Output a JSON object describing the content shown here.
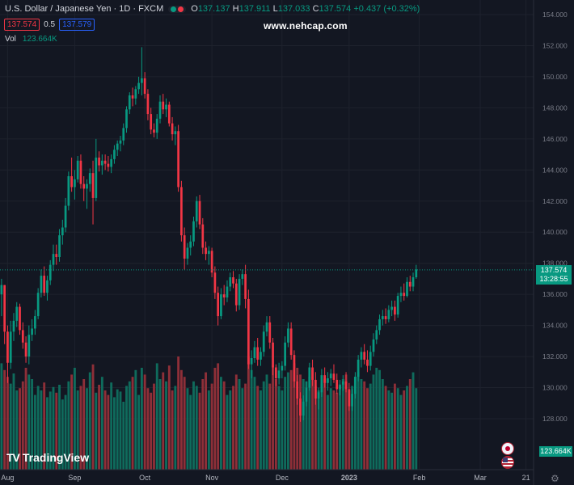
{
  "header": {
    "symbol": "U.S. Dollar / Japanese Yen · 1D · FXCM",
    "open_label": "O",
    "open": "137.137",
    "high_label": "H",
    "high": "137.911",
    "low_label": "L",
    "low": "137.033",
    "close_label": "C",
    "close": "137.574",
    "change": "+0.437 (+0.32%)",
    "status_icons": [
      "market-closed-icon",
      "data-live-icon"
    ]
  },
  "quote": {
    "bid": "137.574",
    "spread": "0.5",
    "ask": "137.579"
  },
  "volume": {
    "label": "Vol",
    "value": "123.664K"
  },
  "watermark": "www.nehcap.com",
  "logo": {
    "text": "TradingView",
    "mark": "TV"
  },
  "last_price": {
    "price": "137.574",
    "countdown": "13:28:55"
  },
  "volume_badge": "123.664K",
  "colors": {
    "up": "#089981",
    "down": "#f23645",
    "background": "#131722",
    "grid": "#1e222d",
    "text": "#d1d4dc"
  },
  "chart_data": {
    "type": "candlestick",
    "ylim": [
      126.5,
      154.5
    ],
    "y_ticks": [
      "154.000",
      "152.000",
      "150.000",
      "148.000",
      "146.000",
      "144.000",
      "142.000",
      "140.000",
      "138.000",
      "136.000",
      "134.000",
      "132.000",
      "130.000",
      "128.000"
    ],
    "y_tick_values": [
      154,
      152,
      150,
      148,
      146,
      144,
      142,
      140,
      138,
      136,
      134,
      132,
      130,
      128
    ],
    "x_ticks": [
      "Aug",
      "Sep",
      "Oct",
      "Nov",
      "Dec",
      "2023",
      "Feb",
      "Mar",
      "21"
    ],
    "x_tick_index": [
      2,
      24,
      47,
      69,
      92,
      114,
      137,
      157,
      172
    ],
    "total_slots": 175,
    "last_price": 137.574,
    "candles": [
      [
        136.0,
        137.0,
        134.6,
        136.6
      ],
      [
        136.6,
        136.6,
        132.8,
        133.6
      ],
      [
        133.6,
        134.0,
        130.3,
        131.6
      ],
      [
        131.6,
        134.3,
        131.2,
        133.6
      ],
      [
        133.6,
        134.8,
        133.0,
        134.3
      ],
      [
        134.3,
        135.5,
        133.9,
        135.2
      ],
      [
        135.2,
        135.4,
        133.4,
        133.7
      ],
      [
        133.7,
        134.2,
        132.5,
        132.9
      ],
      [
        132.9,
        133.3,
        131.6,
        132.0
      ],
      [
        132.0,
        134.0,
        131.5,
        133.4
      ],
      [
        133.4,
        134.4,
        133.0,
        133.8
      ],
      [
        133.8,
        135.0,
        133.4,
        134.6
      ],
      [
        134.6,
        136.4,
        134.4,
        136.1
      ],
      [
        136.1,
        137.6,
        135.8,
        137.2
      ],
      [
        137.2,
        137.8,
        135.9,
        136.1
      ],
      [
        136.1,
        137.2,
        135.6,
        136.9
      ],
      [
        136.9,
        138.2,
        136.6,
        137.9
      ],
      [
        137.9,
        139.2,
        137.5,
        138.6
      ],
      [
        138.6,
        139.2,
        137.9,
        138.4
      ],
      [
        138.4,
        140.2,
        138.1,
        139.8
      ],
      [
        139.8,
        140.8,
        139.2,
        140.3
      ],
      [
        140.3,
        142.2,
        140.0,
        141.7
      ],
      [
        141.7,
        143.9,
        141.4,
        143.6
      ],
      [
        143.6,
        144.8,
        142.6,
        142.9
      ],
      [
        142.9,
        144.0,
        142.1,
        143.4
      ],
      [
        143.4,
        144.9,
        143.2,
        144.6
      ],
      [
        144.6,
        145.0,
        142.8,
        143.1
      ],
      [
        143.1,
        143.6,
        142.0,
        142.8
      ],
      [
        142.8,
        143.4,
        141.5,
        143.1
      ],
      [
        143.1,
        144.1,
        142.6,
        143.8
      ],
      [
        143.8,
        144.6,
        140.5,
        142.2
      ],
      [
        142.2,
        146.0,
        142.0,
        144.8
      ],
      [
        144.8,
        145.2,
        143.9,
        144.3
      ],
      [
        144.3,
        145.0,
        143.7,
        144.6
      ],
      [
        144.6,
        145.0,
        144.0,
        144.4
      ],
      [
        144.4,
        144.9,
        143.9,
        144.2
      ],
      [
        144.2,
        145.0,
        143.8,
        144.7
      ],
      [
        144.7,
        145.6,
        144.4,
        145.3
      ],
      [
        145.3,
        145.9,
        144.9,
        145.7
      ],
      [
        145.7,
        146.2,
        145.2,
        145.9
      ],
      [
        145.9,
        147.0,
        145.6,
        146.7
      ],
      [
        146.7,
        148.1,
        146.4,
        147.9
      ],
      [
        147.9,
        149.0,
        147.6,
        148.8
      ],
      [
        148.8,
        149.3,
        148.1,
        148.6
      ],
      [
        148.6,
        149.4,
        148.2,
        149.2
      ],
      [
        149.2,
        150.0,
        148.9,
        149.6
      ],
      [
        149.6,
        151.9,
        148.8,
        149.9
      ],
      [
        149.9,
        150.3,
        148.6,
        148.9
      ],
      [
        148.9,
        149.2,
        147.2,
        147.6
      ],
      [
        147.6,
        148.0,
        146.3,
        146.6
      ],
      [
        146.6,
        147.0,
        146.1,
        146.4
      ],
      [
        146.4,
        147.6,
        146.0,
        147.3
      ],
      [
        147.3,
        148.8,
        147.0,
        148.4
      ],
      [
        148.4,
        148.9,
        147.6,
        147.9
      ],
      [
        147.9,
        148.6,
        147.4,
        148.2
      ],
      [
        148.2,
        148.4,
        146.8,
        147.0
      ],
      [
        147.0,
        147.4,
        145.9,
        146.3
      ],
      [
        146.3,
        146.8,
        145.6,
        146.5
      ],
      [
        146.5,
        146.9,
        142.6,
        142.9
      ],
      [
        142.9,
        143.3,
        139.4,
        139.8
      ],
      [
        139.8,
        140.3,
        137.6,
        138.3
      ],
      [
        138.3,
        139.3,
        137.9,
        139.0
      ],
      [
        139.0,
        139.8,
        138.5,
        139.4
      ],
      [
        139.4,
        141.0,
        139.1,
        140.7
      ],
      [
        140.7,
        142.3,
        140.3,
        142.0
      ],
      [
        142.0,
        142.4,
        140.2,
        140.5
      ],
      [
        140.5,
        140.9,
        138.6,
        139.0
      ],
      [
        139.0,
        139.4,
        138.2,
        138.6
      ],
      [
        138.6,
        139.1,
        137.9,
        138.8
      ],
      [
        138.8,
        139.0,
        137.1,
        137.4
      ],
      [
        137.4,
        137.8,
        135.7,
        136.1
      ],
      [
        136.1,
        136.5,
        134.0,
        134.6
      ],
      [
        134.6,
        136.4,
        134.4,
        136.0
      ],
      [
        136.0,
        136.6,
        135.3,
        135.8
      ],
      [
        135.8,
        136.9,
        135.5,
        136.5
      ],
      [
        136.5,
        137.4,
        136.2,
        137.1
      ],
      [
        137.1,
        137.5,
        136.4,
        136.7
      ],
      [
        136.7,
        137.0,
        134.9,
        135.3
      ],
      [
        135.3,
        137.3,
        135.0,
        137.0
      ],
      [
        137.0,
        137.6,
        136.6,
        137.3
      ],
      [
        137.3,
        137.9,
        135.1,
        135.7
      ],
      [
        135.7,
        136.3,
        131.2,
        131.5
      ],
      [
        131.5,
        132.4,
        130.6,
        131.9
      ],
      [
        131.9,
        133.0,
        131.6,
        132.6
      ],
      [
        132.6,
        133.2,
        131.4,
        131.8
      ],
      [
        131.8,
        132.6,
        131.4,
        132.3
      ],
      [
        132.3,
        134.0,
        132.0,
        133.6
      ],
      [
        133.6,
        134.6,
        133.3,
        134.2
      ],
      [
        134.2,
        134.6,
        132.5,
        132.9
      ],
      [
        132.9,
        133.2,
        130.8,
        131.3
      ],
      [
        131.3,
        131.5,
        130.1,
        130.6
      ],
      [
        130.6,
        131.6,
        130.2,
        131.1
      ],
      [
        131.1,
        131.7,
        130.6,
        131.4
      ],
      [
        131.4,
        133.3,
        131.1,
        132.9
      ],
      [
        132.9,
        134.2,
        132.6,
        133.8
      ],
      [
        133.8,
        134.2,
        131.8,
        132.1
      ],
      [
        132.1,
        132.4,
        130.0,
        130.4
      ],
      [
        130.4,
        130.8,
        128.9,
        129.3
      ],
      [
        129.3,
        129.7,
        127.8,
        128.2
      ],
      [
        128.2,
        129.5,
        127.9,
        129.1
      ],
      [
        129.1,
        130.4,
        128.8,
        130.0
      ],
      [
        130.0,
        131.6,
        129.8,
        131.3
      ],
      [
        131.3,
        131.8,
        130.1,
        130.5
      ],
      [
        130.5,
        131.0,
        128.9,
        129.3
      ],
      [
        129.3,
        130.0,
        128.6,
        129.7
      ],
      [
        129.7,
        131.2,
        129.4,
        130.8
      ],
      [
        130.8,
        131.3,
        130.0,
        130.3
      ],
      [
        130.3,
        131.0,
        129.8,
        130.6
      ],
      [
        130.6,
        131.2,
        130.1,
        130.9
      ],
      [
        130.9,
        131.5,
        130.3,
        130.5
      ],
      [
        130.5,
        130.9,
        129.6,
        129.9
      ],
      [
        129.9,
        130.5,
        129.5,
        130.2
      ],
      [
        130.2,
        130.8,
        129.8,
        130.4
      ],
      [
        130.4,
        131.0,
        129.7,
        129.9
      ],
      [
        129.9,
        130.3,
        128.5,
        128.8
      ],
      [
        128.8,
        129.9,
        128.5,
        129.6
      ],
      [
        129.6,
        131.0,
        129.3,
        130.7
      ],
      [
        130.7,
        132.1,
        130.4,
        131.8
      ],
      [
        131.8,
        132.6,
        131.3,
        132.3
      ],
      [
        132.3,
        132.8,
        131.5,
        131.8
      ],
      [
        131.8,
        132.4,
        131.0,
        131.4
      ],
      [
        131.4,
        132.7,
        131.1,
        132.3
      ],
      [
        132.3,
        133.5,
        132.0,
        133.1
      ],
      [
        133.1,
        134.0,
        132.8,
        133.7
      ],
      [
        133.7,
        134.7,
        133.4,
        134.4
      ],
      [
        134.4,
        135.0,
        134.0,
        134.6
      ],
      [
        134.6,
        135.1,
        134.1,
        134.4
      ],
      [
        134.4,
        135.3,
        134.2,
        135.0
      ],
      [
        135.0,
        135.6,
        134.6,
        135.2
      ],
      [
        135.2,
        135.6,
        134.3,
        134.7
      ],
      [
        134.7,
        136.1,
        134.5,
        135.9
      ],
      [
        135.9,
        136.5,
        135.5,
        136.1
      ],
      [
        136.1,
        136.7,
        135.6,
        135.9
      ],
      [
        135.9,
        137.1,
        135.8,
        136.8
      ],
      [
        136.8,
        137.2,
        136.2,
        136.5
      ],
      [
        136.5,
        137.4,
        136.2,
        137.1
      ],
      [
        137.1,
        137.9,
        137.0,
        137.6
      ]
    ],
    "volumes": [
      0.94,
      0.88,
      0.82,
      0.76,
      0.85,
      0.7,
      0.72,
      0.78,
      0.9,
      0.84,
      0.8,
      0.66,
      0.74,
      0.7,
      0.77,
      0.64,
      0.69,
      0.73,
      0.68,
      0.75,
      0.62,
      0.66,
      0.78,
      0.84,
      0.9,
      0.7,
      0.74,
      0.8,
      0.72,
      0.86,
      0.93,
      0.68,
      0.75,
      0.82,
      0.7,
      0.66,
      0.77,
      0.64,
      0.71,
      0.69,
      0.6,
      0.74,
      0.78,
      0.82,
      0.88,
      0.66,
      0.9,
      0.84,
      0.72,
      0.68,
      0.76,
      0.94,
      0.8,
      0.86,
      0.78,
      0.92,
      0.7,
      0.74,
      1.0,
      0.88,
      0.82,
      0.72,
      0.66,
      0.78,
      0.74,
      0.68,
      0.8,
      0.86,
      0.7,
      0.76,
      0.9,
      0.94,
      0.82,
      0.78,
      0.66,
      0.7,
      0.74,
      0.84,
      0.8,
      0.72,
      0.76,
      1.0,
      0.88,
      0.82,
      0.74,
      0.7,
      0.78,
      0.84,
      0.76,
      0.92,
      0.8,
      0.74,
      0.7,
      0.82,
      0.86,
      0.88,
      0.94,
      0.9,
      0.84,
      0.8,
      0.78,
      0.82,
      0.88,
      0.74,
      0.7,
      0.76,
      0.8,
      0.66,
      0.72,
      0.7,
      0.68,
      0.74,
      0.8,
      0.84,
      0.7,
      0.74,
      0.82,
      0.86,
      0.8,
      0.78,
      0.72,
      0.76,
      0.84,
      0.9,
      0.88,
      0.8,
      0.74,
      0.7,
      0.68,
      0.76,
      0.72,
      0.66,
      0.7,
      0.74,
      0.8,
      0.86,
      0.72
    ],
    "volume_scale_max": 1.0
  }
}
